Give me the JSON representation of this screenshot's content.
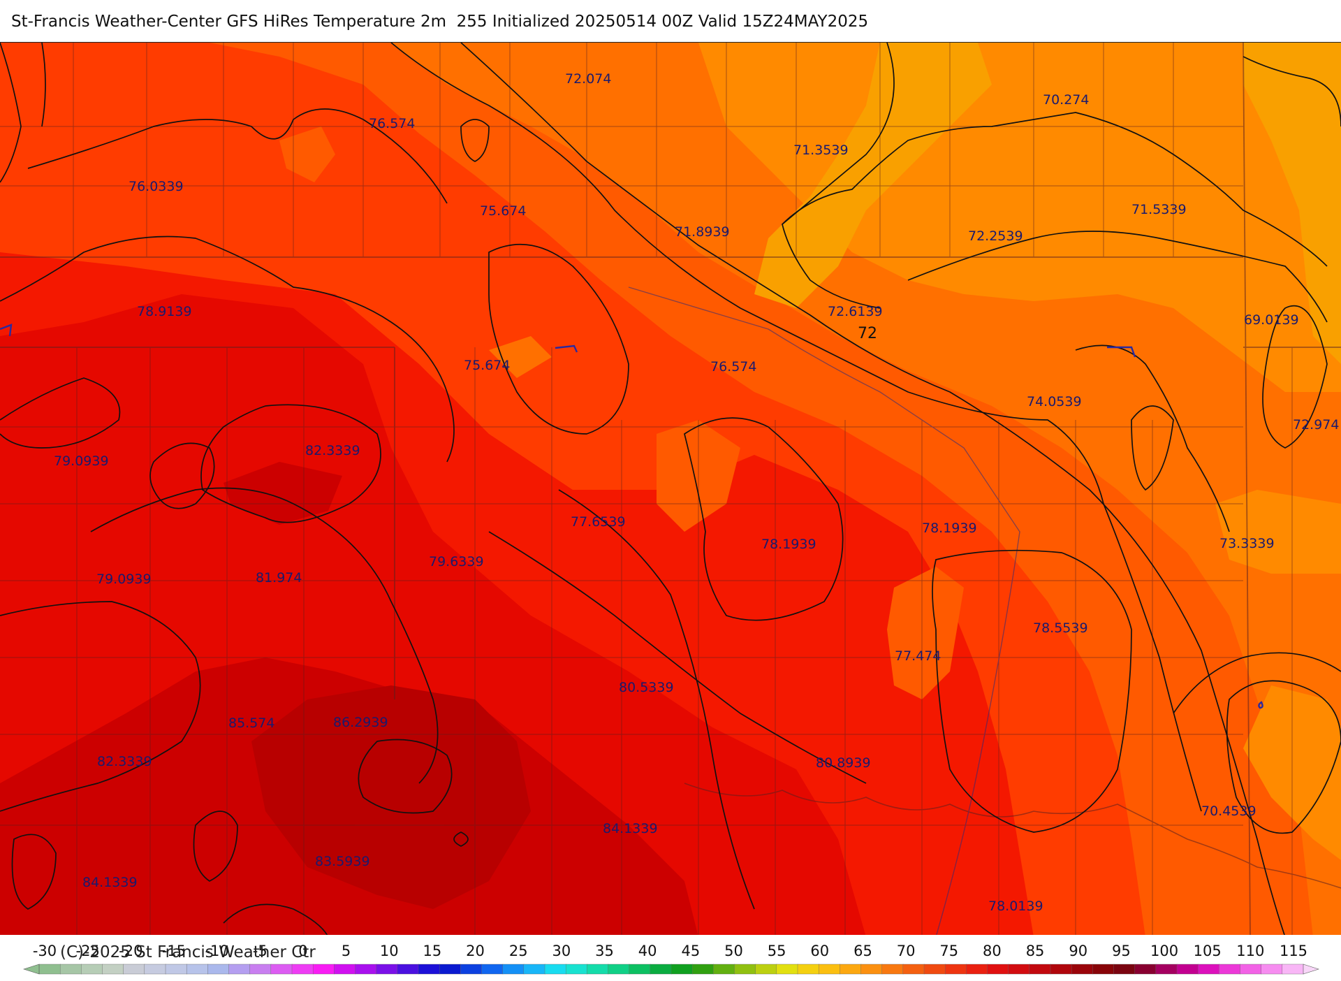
{
  "title": "St-Francis Weather-Center GFS HiRes Temperature 2m  255 Initialized 20250514 00Z Valid 15Z24MAY2025",
  "copyright": "(C)-2025 St Francis Weather Ctr",
  "contour_label": "72",
  "point_labels": [
    "72.074",
    "70.274",
    "76.574",
    "71.3539",
    "76.0339",
    "75.674",
    "71.8939",
    "72.2539",
    "71.5339",
    "78.9139",
    "72.6139",
    "69.0139",
    "75.674",
    "76.574",
    "74.0539",
    "72.974",
    "79.0939",
    "82.3339",
    "77.6539",
    "78.1939",
    "78.1939",
    "73.3339",
    "79.0939",
    "81.974",
    "79.6339",
    "78.5539",
    "77.474",
    "80.5339",
    "85.574",
    "86.2939",
    "82.3339",
    "80.8939",
    "70.4539",
    "84.1339",
    "83.5939",
    "84.1339",
    "78.0139"
  ],
  "legend": {
    "ticks": [
      "-30",
      "-25",
      "-20",
      "-15",
      "-10",
      "-5",
      "0",
      "5",
      "10",
      "15",
      "20",
      "25",
      "30",
      "35",
      "40",
      "45",
      "50",
      "55",
      "60",
      "65",
      "70",
      "75",
      "80",
      "85",
      "90",
      "95",
      "100",
      "105",
      "110",
      "115"
    ],
    "colors": [
      "#8fbf8f",
      "#a6c6a6",
      "#b6cdb6",
      "#c3d0c3",
      "#c9ccd6",
      "#c6cbe0",
      "#c0c8e6",
      "#b7c3ea",
      "#aab8ec",
      "#b49ef0",
      "#c87ef0",
      "#dc5cf2",
      "#ee3cf4",
      "#f81cf4",
      "#d010f0",
      "#a810ee",
      "#7a10e8",
      "#4a10e0",
      "#1c10d8",
      "#0a1ad0",
      "#0c40e0",
      "#1066f0",
      "#1490f6",
      "#18b6f8",
      "#18dcf0",
      "#18e2d0",
      "#14dcaa",
      "#10d086",
      "#0cc062",
      "#0aac40",
      "#10a020",
      "#30a010",
      "#62b010",
      "#90c010",
      "#bcd010",
      "#e2e010",
      "#f4d010",
      "#fbbf10",
      "#fca810",
      "#fb9010",
      "#f87810",
      "#f46010",
      "#f04a10",
      "#ee3410",
      "#ea2010",
      "#e01010",
      "#d20c10",
      "#c2080e",
      "#b0060c",
      "#9a040a",
      "#880408",
      "#7a0410",
      "#880030",
      "#a40060",
      "#c20090",
      "#dc10bc",
      "#ec38d8",
      "#f262e6",
      "#f68cf0",
      "#f8b6f6"
    ]
  },
  "colors": {
    "orange_light": "#f9a000",
    "orange": "#ff8a00",
    "orange_dark": "#ff7000",
    "red_orange": "#ff5a00",
    "red": "#ff3c00",
    "red_deep": "#f41800",
    "crimson": "#e50800",
    "crimson_dark": "#cc0000",
    "maroon": "#b80000",
    "contour": "#111111",
    "label": "#1a1a6e",
    "boundary": "#5a2020"
  }
}
